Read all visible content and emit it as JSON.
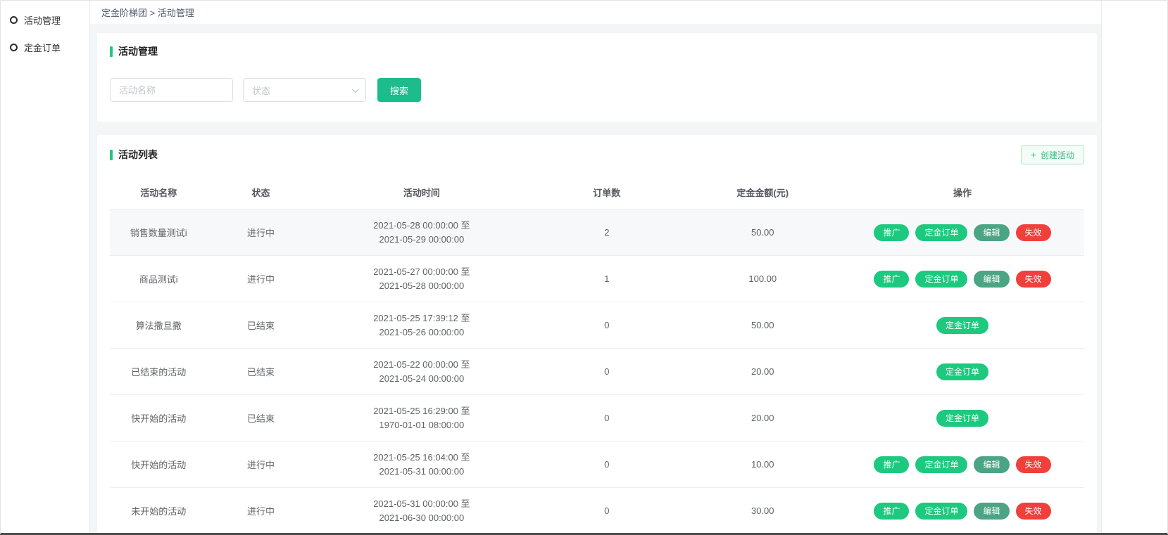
{
  "colors": {
    "green": "#1dc97e",
    "search-green": "#1cbc8c",
    "muted-green": "#4ba483",
    "red": "#f0403c",
    "create-bg": "#f3fcf7",
    "create-border": "#b7e8cf",
    "create-text": "#3cb981"
  },
  "sidebar": {
    "items": [
      {
        "label": "活动管理"
      },
      {
        "label": "定金订单"
      }
    ]
  },
  "breadcrumb": {
    "text": "定金阶梯团 > 活动管理"
  },
  "search_panel": {
    "title": "活动管理",
    "name_placeholder": "活动名称",
    "status_placeholder": "状态",
    "search_label": "搜索"
  },
  "list_panel": {
    "title": "活动列表",
    "create_icon": "+",
    "create_label": "创建活动"
  },
  "table": {
    "headers": [
      "活动名称",
      "状态",
      "活动时间",
      "订单数",
      "定金金额(元)",
      "操作"
    ],
    "rows": [
      {
        "highlighted": true,
        "name": "销售数量测试i",
        "status": "进行中",
        "time_start": "2021-05-28 00:00:00 至",
        "time_end": "2021-05-29 00:00:00",
        "orders": "2",
        "amount": "50.00",
        "actions": [
          {
            "label": "推广",
            "kind": "primary",
            "name": "promote-button"
          },
          {
            "label": "定金订单",
            "kind": "primary",
            "name": "deposit-order-button"
          },
          {
            "label": "编辑",
            "kind": "edit",
            "name": "edit-button"
          },
          {
            "label": "失效",
            "kind": "danger",
            "name": "invalidate-button"
          }
        ]
      },
      {
        "highlighted": false,
        "name": "商品测试i",
        "status": "进行中",
        "time_start": "2021-05-27 00:00:00 至",
        "time_end": "2021-05-28 00:00:00",
        "orders": "1",
        "amount": "100.00",
        "actions": [
          {
            "label": "推广",
            "kind": "primary",
            "name": "promote-button"
          },
          {
            "label": "定金订单",
            "kind": "primary",
            "name": "deposit-order-button"
          },
          {
            "label": "编辑",
            "kind": "edit",
            "name": "edit-button"
          },
          {
            "label": "失效",
            "kind": "danger",
            "name": "invalidate-button"
          }
        ]
      },
      {
        "highlighted": false,
        "name": "算法撒旦撒",
        "status": "已结束",
        "time_start": "2021-05-25 17:39:12 至",
        "time_end": "2021-05-26 00:00:00",
        "orders": "0",
        "amount": "50.00",
        "actions": [
          {
            "label": "定金订单",
            "kind": "primary",
            "name": "deposit-order-button"
          }
        ]
      },
      {
        "highlighted": false,
        "name": "已结束的活动",
        "status": "已结束",
        "time_start": "2021-05-22 00:00:00 至",
        "time_end": "2021-05-24 00:00:00",
        "orders": "0",
        "amount": "20.00",
        "actions": [
          {
            "label": "定金订单",
            "kind": "primary",
            "name": "deposit-order-button"
          }
        ]
      },
      {
        "highlighted": false,
        "name": "快开始的活动",
        "status": "已结束",
        "time_start": "2021-05-25 16:29:00 至",
        "time_end": "1970-01-01 08:00:00",
        "orders": "0",
        "amount": "20.00",
        "actions": [
          {
            "label": "定金订单",
            "kind": "primary",
            "name": "deposit-order-button"
          }
        ]
      },
      {
        "highlighted": false,
        "name": "快开始的活动",
        "status": "进行中",
        "time_start": "2021-05-25 16:04:00 至",
        "time_end": "2021-05-31 00:00:00",
        "orders": "0",
        "amount": "10.00",
        "actions": [
          {
            "label": "推广",
            "kind": "primary",
            "name": "promote-button"
          },
          {
            "label": "定金订单",
            "kind": "primary",
            "name": "deposit-order-button"
          },
          {
            "label": "编辑",
            "kind": "edit",
            "name": "edit-button"
          },
          {
            "label": "失效",
            "kind": "danger",
            "name": "invalidate-button"
          }
        ]
      },
      {
        "highlighted": false,
        "name": "未开始的活动",
        "status": "进行中",
        "time_start": "2021-05-31 00:00:00 至",
        "time_end": "2021-06-30 00:00:00",
        "orders": "0",
        "amount": "30.00",
        "actions": [
          {
            "label": "推广",
            "kind": "primary",
            "name": "promote-button"
          },
          {
            "label": "定金订单",
            "kind": "primary",
            "name": "deposit-order-button"
          },
          {
            "label": "编辑",
            "kind": "edit",
            "name": "edit-button"
          },
          {
            "label": "失效",
            "kind": "danger",
            "name": "invalidate-button"
          }
        ]
      }
    ]
  }
}
